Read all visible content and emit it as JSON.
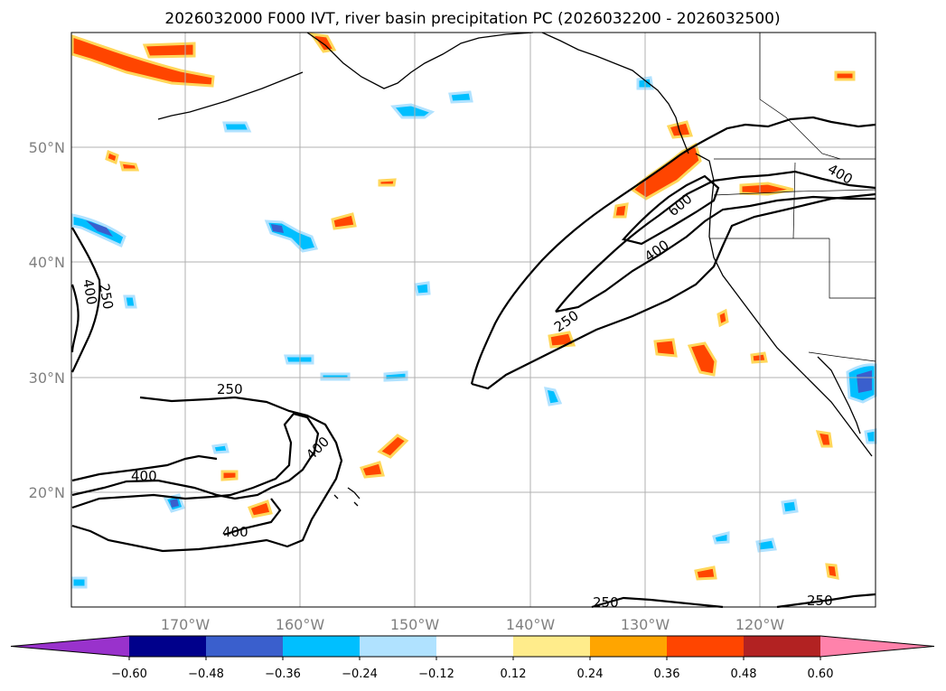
{
  "title": "2026032000 F000 IVT, river basin precipitation PC (2026032200 - 2026032500)",
  "map": {
    "lon_range": [
      180,
      110
    ],
    "lat_range": [
      10,
      60
    ],
    "lon_ticks": [
      "170°W",
      "160°W",
      "150°W",
      "140°W",
      "130°W",
      "120°W"
    ],
    "lat_ticks": [
      "50°N",
      "40°N",
      "30°N",
      "20°N"
    ],
    "grid_color": "#b0b0b0",
    "tick_color": "#808080"
  },
  "ivt_contours": {
    "levels": [
      250,
      400,
      600
    ],
    "labels": [
      "250",
      "400",
      "250",
      "400",
      "400",
      "400",
      "250",
      "400",
      "600",
      "250",
      "250",
      "400"
    ]
  },
  "colorbar": {
    "ticks": [
      "−0.60",
      "−0.48",
      "−0.36",
      "−0.24",
      "−0.12",
      "0.12",
      "0.24",
      "0.36",
      "0.48",
      "0.60"
    ],
    "colors": [
      "#9932cc",
      "#00008b",
      "#3a5fcd",
      "#00bfff",
      "#b0e2ff",
      "#ffffff",
      "#ffec8b",
      "#ffa500",
      "#ff4500",
      "#b22222",
      "#ff82ab"
    ]
  }
}
